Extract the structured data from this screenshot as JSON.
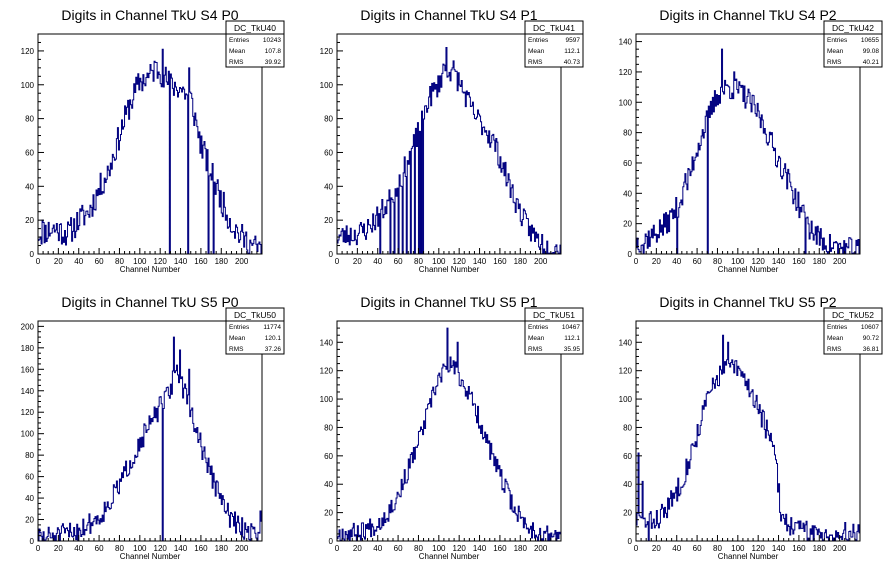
{
  "chart_data": [
    {
      "type": "histogram",
      "title": "Digits in Channel TkU S4 P0",
      "xlabel": "Channel Number",
      "ylabel": "",
      "xlim": [
        0,
        220
      ],
      "ylim": [
        0,
        130
      ],
      "xticks": [
        0,
        20,
        40,
        60,
        80,
        100,
        120,
        140,
        160,
        180,
        200
      ],
      "yticks": [
        0,
        20,
        40,
        60,
        80,
        100,
        120
      ],
      "color": "#000080",
      "stats": {
        "name": "DC_TkU40",
        "rows": [
          {
            "label": "Entries",
            "value": "10243"
          },
          {
            "label": "Mean",
            "value": "107.8"
          },
          {
            "label": "RMS",
            "value": "39.92"
          }
        ]
      },
      "profile": {
        "points": [
          [
            0,
            12
          ],
          [
            15,
            15
          ],
          [
            30,
            12
          ],
          [
            40,
            20
          ],
          [
            50,
            25
          ],
          [
            60,
            38
          ],
          [
            70,
            50
          ],
          [
            80,
            70
          ],
          [
            90,
            88
          ],
          [
            100,
            102
          ],
          [
            110,
            105
          ],
          [
            115,
            110
          ],
          [
            120,
            108
          ],
          [
            130,
            100
          ],
          [
            140,
            98
          ],
          [
            150,
            92
          ],
          [
            160,
            65
          ],
          [
            170,
            48
          ],
          [
            180,
            32
          ],
          [
            190,
            18
          ],
          [
            200,
            10
          ],
          [
            210,
            5
          ],
          [
            220,
            2
          ]
        ],
        "noise": 8,
        "seed": 11,
        "spikes": [
          {
            "x": 4,
            "v": 20
          },
          {
            "x": 18,
            "v": 18
          },
          {
            "x": 122,
            "v": 121
          },
          {
            "x": 148,
            "v": 110
          }
        ],
        "zeros": [
          129,
          147,
          167,
          172
        ]
      }
    },
    {
      "type": "histogram",
      "title": "Digits in Channel TkU S4 P1",
      "xlabel": "Channel Number",
      "ylabel": "",
      "xlim": [
        0,
        220
      ],
      "ylim": [
        0,
        130
      ],
      "xticks": [
        0,
        20,
        40,
        60,
        80,
        100,
        120,
        140,
        160,
        180,
        200
      ],
      "yticks": [
        0,
        20,
        40,
        60,
        80,
        100,
        120
      ],
      "color": "#000080",
      "stats": {
        "name": "DC_TkU41",
        "rows": [
          {
            "label": "Entries",
            "value": "9597"
          },
          {
            "label": "Mean",
            "value": "112.1"
          },
          {
            "label": "RMS",
            "value": "40.73"
          }
        ]
      },
      "profile": {
        "points": [
          [
            0,
            10
          ],
          [
            20,
            12
          ],
          [
            30,
            15
          ],
          [
            40,
            22
          ],
          [
            50,
            30
          ],
          [
            60,
            42
          ],
          [
            70,
            55
          ],
          [
            80,
            72
          ],
          [
            90,
            92
          ],
          [
            100,
            100
          ],
          [
            105,
            110
          ],
          [
            115,
            108
          ],
          [
            125,
            95
          ],
          [
            135,
            82
          ],
          [
            145,
            75
          ],
          [
            155,
            65
          ],
          [
            165,
            48
          ],
          [
            175,
            32
          ],
          [
            185,
            18
          ],
          [
            195,
            10
          ],
          [
            205,
            5
          ],
          [
            210,
            3
          ]
        ],
        "noise": 7,
        "seed": 23,
        "spikes": [
          {
            "x": 107,
            "v": 122
          },
          {
            "x": 113,
            "v": 110
          }
        ],
        "zeros": [
          42,
          52,
          56,
          60,
          64,
          68,
          72,
          76,
          80,
          82,
          84
        ]
      }
    },
    {
      "type": "histogram",
      "title": "Digits in Channel TkU S4 P2",
      "xlabel": "Channel Number",
      "ylabel": "",
      "xlim": [
        0,
        220
      ],
      "ylim": [
        0,
        145
      ],
      "xticks": [
        0,
        20,
        40,
        60,
        80,
        100,
        120,
        140,
        160,
        180,
        200
      ],
      "yticks": [
        0,
        20,
        40,
        60,
        80,
        100,
        120,
        140
      ],
      "color": "#000080",
      "stats": {
        "name": "DC_TkU42",
        "rows": [
          {
            "label": "Entries",
            "value": "10655"
          },
          {
            "label": "Mean",
            "value": "99.08"
          },
          {
            "label": "RMS",
            "value": "40.21"
          }
        ]
      },
      "profile": {
        "points": [
          [
            0,
            8
          ],
          [
            10,
            10
          ],
          [
            20,
            14
          ],
          [
            30,
            20
          ],
          [
            40,
            30
          ],
          [
            50,
            45
          ],
          [
            60,
            70
          ],
          [
            70,
            88
          ],
          [
            80,
            105
          ],
          [
            90,
            110
          ],
          [
            100,
            108
          ],
          [
            110,
            102
          ],
          [
            120,
            92
          ],
          [
            130,
            78
          ],
          [
            140,
            62
          ],
          [
            150,
            48
          ],
          [
            160,
            32
          ],
          [
            170,
            18
          ],
          [
            180,
            10
          ],
          [
            190,
            6
          ],
          [
            200,
            4
          ],
          [
            210,
            3
          ],
          [
            220,
            2
          ]
        ],
        "noise": 8,
        "seed": 37,
        "spikes": [
          {
            "x": 48,
            "v": 53
          },
          {
            "x": 84,
            "v": 135
          },
          {
            "x": 96,
            "v": 120
          }
        ],
        "zeros": [
          7,
          40,
          70,
          166
        ]
      }
    },
    {
      "type": "histogram",
      "title": "Digits in Channel TkU S5 P0",
      "xlabel": "Channel Number",
      "ylabel": "",
      "xlim": [
        0,
        220
      ],
      "ylim": [
        0,
        205
      ],
      "xticks": [
        0,
        20,
        40,
        60,
        80,
        100,
        120,
        140,
        160,
        180,
        200
      ],
      "yticks": [
        0,
        20,
        40,
        60,
        80,
        100,
        120,
        140,
        160,
        180,
        200
      ],
      "color": "#000080",
      "stats": {
        "name": "DC_TkU50",
        "rows": [
          {
            "label": "Entries",
            "value": "11774"
          },
          {
            "label": "Mean",
            "value": "120.1"
          },
          {
            "label": "RMS",
            "value": "37.26"
          }
        ]
      },
      "profile": {
        "points": [
          [
            0,
            3
          ],
          [
            20,
            5
          ],
          [
            40,
            10
          ],
          [
            60,
            22
          ],
          [
            70,
            35
          ],
          [
            80,
            52
          ],
          [
            90,
            72
          ],
          [
            100,
            92
          ],
          [
            110,
            108
          ],
          [
            120,
            125
          ],
          [
            130,
            140
          ],
          [
            135,
            160
          ],
          [
            140,
            150
          ],
          [
            150,
            120
          ],
          [
            160,
            90
          ],
          [
            170,
            62
          ],
          [
            180,
            38
          ],
          [
            190,
            20
          ],
          [
            200,
            12
          ],
          [
            210,
            8
          ],
          [
            218,
            10
          ]
        ],
        "noise": 10,
        "seed": 51,
        "spikes": [
          {
            "x": 133,
            "v": 190
          },
          {
            "x": 139,
            "v": 178
          },
          {
            "x": 148,
            "v": 160
          },
          {
            "x": 218,
            "v": 28
          }
        ],
        "zeros": [
          122
        ]
      }
    },
    {
      "type": "histogram",
      "title": "Digits in Channel TkU S5 P1",
      "xlabel": "Channel Number",
      "ylabel": "",
      "xlim": [
        0,
        220
      ],
      "ylim": [
        0,
        155
      ],
      "xticks": [
        0,
        20,
        40,
        60,
        80,
        100,
        120,
        140,
        160,
        180,
        200
      ],
      "yticks": [
        0,
        20,
        40,
        60,
        80,
        100,
        120,
        140
      ],
      "color": "#000080",
      "stats": {
        "name": "DC_TkU51",
        "rows": [
          {
            "label": "Entries",
            "value": "10467"
          },
          {
            "label": "Mean",
            "value": "112.1"
          },
          {
            "label": "RMS",
            "value": "35.95"
          }
        ]
      },
      "profile": {
        "points": [
          [
            0,
            5
          ],
          [
            20,
            6
          ],
          [
            40,
            12
          ],
          [
            50,
            20
          ],
          [
            60,
            32
          ],
          [
            70,
            50
          ],
          [
            80,
            70
          ],
          [
            90,
            92
          ],
          [
            100,
            115
          ],
          [
            110,
            125
          ],
          [
            115,
            122
          ],
          [
            125,
            110
          ],
          [
            135,
            95
          ],
          [
            145,
            75
          ],
          [
            155,
            55
          ],
          [
            165,
            38
          ],
          [
            175,
            22
          ],
          [
            185,
            12
          ],
          [
            195,
            6
          ],
          [
            205,
            4
          ],
          [
            215,
            3
          ]
        ],
        "noise": 7,
        "seed": 67,
        "spikes": [
          {
            "x": 108,
            "v": 150
          },
          {
            "x": 118,
            "v": 140
          }
        ],
        "zeros": []
      }
    },
    {
      "type": "histogram",
      "title": "Digits in Channel TkU S5 P2",
      "xlabel": "Channel Number",
      "ylabel": "",
      "xlim": [
        0,
        220
      ],
      "ylim": [
        0,
        155
      ],
      "xticks": [
        0,
        20,
        40,
        60,
        80,
        100,
        120,
        140,
        160,
        180,
        200
      ],
      "yticks": [
        0,
        20,
        40,
        60,
        80,
        100,
        120,
        140
      ],
      "color": "#000080",
      "stats": {
        "name": "DC_TkU52",
        "rows": [
          {
            "label": "Entries",
            "value": "10607"
          },
          {
            "label": "Mean",
            "value": "90.72"
          },
          {
            "label": "RMS",
            "value": "36.81"
          }
        ]
      },
      "profile": {
        "points": [
          [
            0,
            15
          ],
          [
            10,
            12
          ],
          [
            20,
            15
          ],
          [
            30,
            22
          ],
          [
            40,
            35
          ],
          [
            50,
            52
          ],
          [
            60,
            75
          ],
          [
            70,
            100
          ],
          [
            80,
            115
          ],
          [
            90,
            125
          ],
          [
            100,
            120
          ],
          [
            110,
            110
          ],
          [
            120,
            95
          ],
          [
            130,
            75
          ],
          [
            138,
            55
          ],
          [
            142,
            20
          ],
          [
            150,
            12
          ],
          [
            160,
            8
          ],
          [
            170,
            6
          ],
          [
            180,
            5
          ],
          [
            190,
            5
          ],
          [
            200,
            4
          ],
          [
            210,
            6
          ],
          [
            220,
            8
          ]
        ],
        "noise": 8,
        "seed": 83,
        "spikes": [
          {
            "x": 2,
            "v": 62
          },
          {
            "x": 6,
            "v": 42
          },
          {
            "x": 85,
            "v": 145
          },
          {
            "x": 90,
            "v": 140
          }
        ],
        "zeros": [
          12
        ]
      }
    }
  ]
}
